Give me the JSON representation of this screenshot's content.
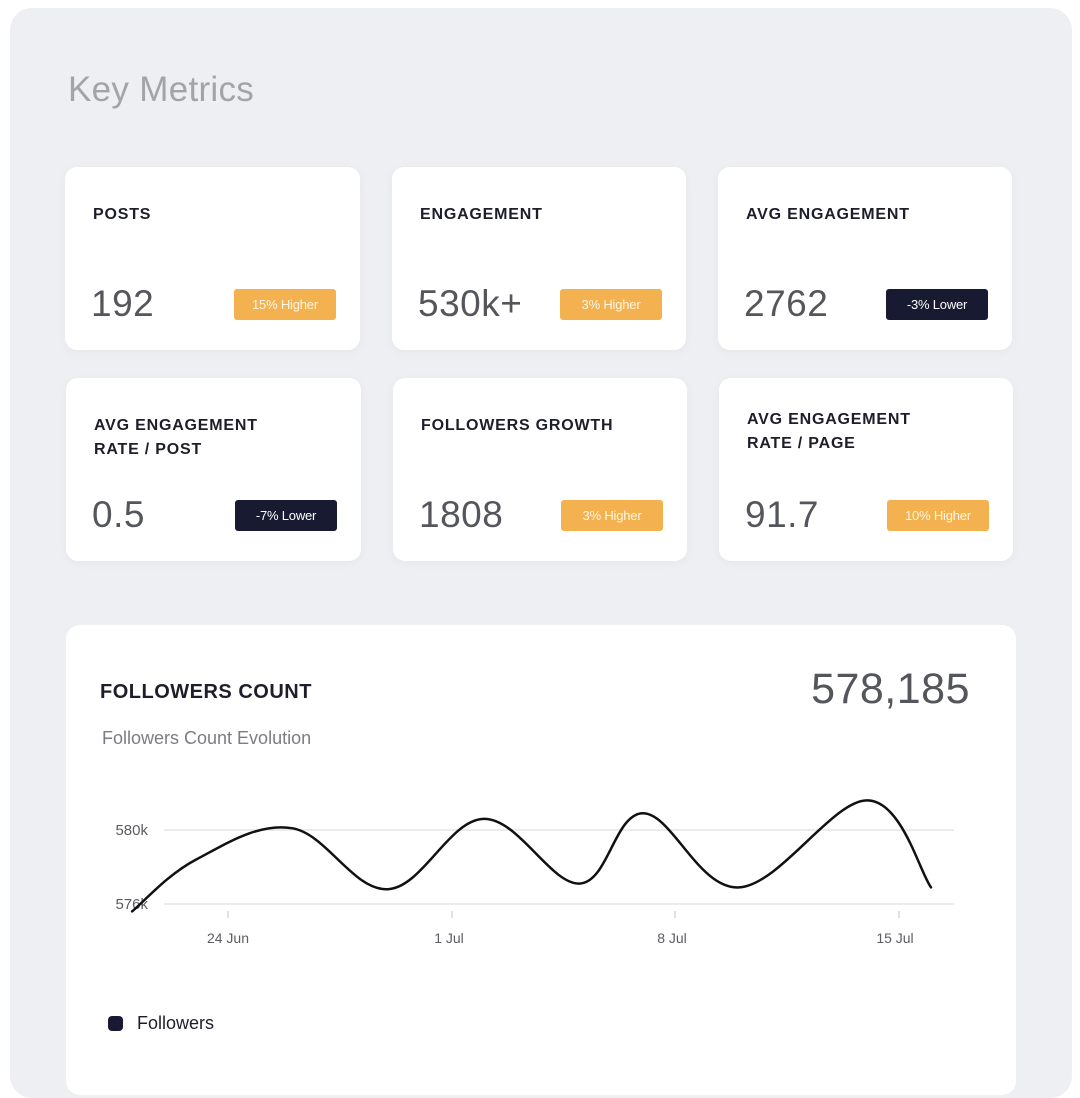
{
  "page": {
    "title": "Key Metrics"
  },
  "metrics": [
    {
      "label": "POSTS",
      "value": "192",
      "badge": "15% Higher",
      "trend": "up"
    },
    {
      "label": "ENGAGEMENT",
      "value": "530k+",
      "badge": "3% Higher",
      "trend": "up"
    },
    {
      "label": "AVG ENGAGEMENT",
      "value": "2762",
      "badge": "-3% Lower",
      "trend": "down"
    },
    {
      "label": "AVG ENGAGEMENT\nRATE / POST",
      "value": "0.5",
      "badge": "-7% Lower",
      "trend": "down"
    },
    {
      "label": "FOLLOWERS GROWTH",
      "value": "1808",
      "badge": "3% Higher",
      "trend": "up"
    },
    {
      "label": "AVG ENGAGEMENT\nRATE / PAGE",
      "value": "91.7",
      "badge": "10% Higher",
      "trend": "up"
    }
  ],
  "followers": {
    "title": "FOLLOWERS COUNT",
    "subtitle": "Followers Count Evolution",
    "total": "578,185",
    "legend_label": "Followers"
  },
  "colors": {
    "badge_up": "#f3b24f",
    "badge_down": "#171a30",
    "line": "#111111",
    "grid": "#e3e4ea"
  },
  "chart_data": {
    "type": "line",
    "title": "FOLLOWERS COUNT",
    "subtitle": "Followers Count Evolution",
    "xlabel": "",
    "ylabel": "",
    "x_ticks": [
      "24 Jun",
      "1 Jul",
      "8 Jul",
      "15 Jul"
    ],
    "y_ticks": [
      "576k",
      "580k"
    ],
    "ylim": [
      576000,
      580000
    ],
    "grid": true,
    "legend": "bottom-left",
    "series": [
      {
        "name": "Followers",
        "x": [
          "21 Jun",
          "23 Jun",
          "26 Jun",
          "29 Jun",
          "2 Jul",
          "5 Jul",
          "7 Jul",
          "10 Jul",
          "14 Jul",
          "16 Jul"
        ],
        "values": [
          575600,
          578400,
          580100,
          576800,
          580600,
          577100,
          580900,
          576900,
          581600,
          576900
        ]
      }
    ]
  }
}
